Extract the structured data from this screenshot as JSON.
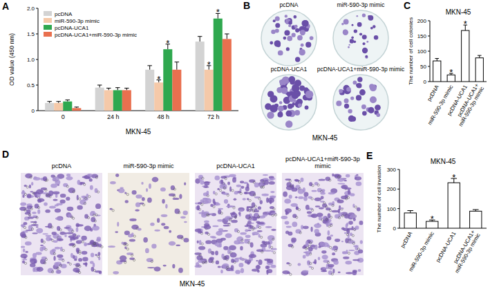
{
  "chart_data": [
    {
      "type": "bar",
      "panel": "A",
      "title": "MKN-45",
      "y_label": "OD value (450 nm)",
      "categories": [
        "0",
        "24 h",
        "48 h",
        "72 h"
      ],
      "series": [
        {
          "name": "pcDNA",
          "color": "#d3d3d3",
          "values": [
            0.15,
            0.45,
            0.8,
            1.35
          ],
          "errors": [
            0.03,
            0.05,
            0.08,
            0.1
          ]
        },
        {
          "name": "miR-590-3p mimic",
          "color": "#f5c9a9",
          "values": [
            0.15,
            0.4,
            0.55,
            0.8
          ],
          "errors": [
            0.03,
            0.04,
            0.05,
            0.08
          ]
        },
        {
          "name": "pcDNA-UCA1",
          "color": "#2fa84f",
          "values": [
            0.18,
            0.4,
            1.2,
            1.8
          ],
          "errors": [
            0.03,
            0.05,
            0.1,
            0.1
          ]
        },
        {
          "name": "pcDNA-UCA1+miR-590-3p mimic",
          "color": "#e9704f",
          "values": [
            0.05,
            0.4,
            0.8,
            1.4
          ],
          "errors": [
            0.02,
            0.04,
            0.15,
            0.1
          ]
        }
      ],
      "ylim": [
        0,
        2
      ],
      "yticks": [
        0,
        0.5,
        {
          "value": 1,
          "label": "1.0"
        },
        1.5,
        {
          "value": 2,
          "label": "2.0"
        }
      ],
      "grid": false,
      "legend": "top-left",
      "annotations": [
        {
          "text": "*",
          "series": 1,
          "index": 2
        },
        {
          "text": "*",
          "series": 2,
          "index": 2
        },
        {
          "text": "*",
          "series": 1,
          "index": 3
        },
        {
          "text": "*",
          "series": 2,
          "index": 3
        }
      ]
    },
    {
      "type": "bar",
      "panel": "C",
      "title": "MKN-45",
      "y_label": "The number of cell colonies",
      "categories": [
        "pcDNA",
        "miR-590-3p mimic",
        "pcDNA-UCA1",
        "pcDNA-UCA1+miR-590-3p mimic"
      ],
      "values": [
        68,
        22,
        168,
        78
      ],
      "errors": [
        8,
        5,
        18,
        8
      ],
      "color": "#ffffff",
      "ylim": [
        0,
        200
      ],
      "yticks": [
        0,
        50,
        100,
        150,
        200
      ],
      "grid": false,
      "annotations": [
        {
          "text": "*",
          "index": 1
        },
        {
          "text": "*",
          "index": 2
        }
      ]
    },
    {
      "type": "bar",
      "panel": "E",
      "title": "MKN-45",
      "y_label": "The number of cell invasion",
      "categories": [
        "pcDNA",
        "miR-590-3p mimic",
        "pcDNA-UCA1",
        "pcDNA-UCA1+miR-590-3p mimic"
      ],
      "values": [
        78,
        35,
        232,
        87
      ],
      "errors": [
        12,
        7,
        22,
        8
      ],
      "color": "#ffffff",
      "ylim": [
        0,
        300
      ],
      "yticks": [
        0,
        100,
        200,
        300
      ],
      "grid": false,
      "annotations": [
        {
          "text": "*",
          "index": 1
        },
        {
          "text": "*",
          "index": 2
        }
      ]
    }
  ],
  "images": [
    {
      "panel": "B",
      "labels": [
        "pcDNA",
        "miR-590-3p mimic",
        "pcDNA-UCA1",
        "pcDNA-UCA1+miR-590-3p mimic"
      ],
      "caption": "MKN-45"
    },
    {
      "panel": "D",
      "labels": [
        "pcDNA",
        "miR-590-3p mimic",
        "pcDNA-UCA1",
        "pcDNA-UCA1+miR-590-3p mimic"
      ],
      "caption": "MKN-45"
    }
  ]
}
